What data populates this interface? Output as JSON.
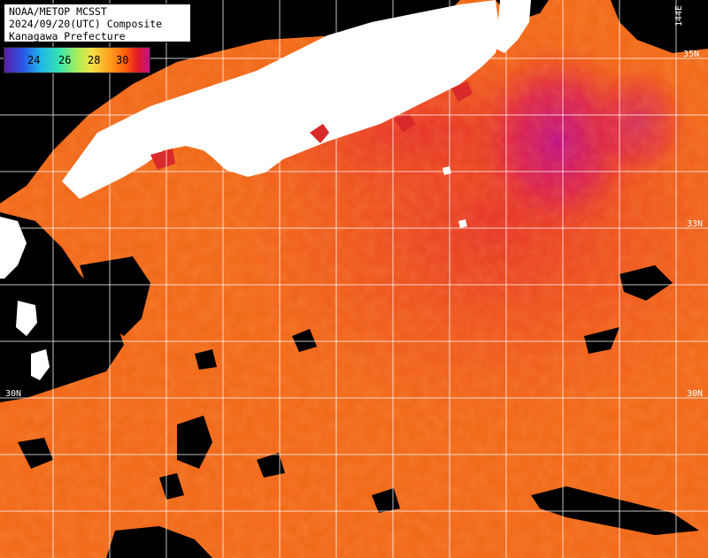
{
  "title": {
    "line1": "NOAA/METOP MCSST",
    "line2": "2024/09/20(UTC) Composite",
    "line3": "Kanagawa Prefecture"
  },
  "legend": {
    "ticks": [
      "24",
      "26",
      "28",
      "30"
    ],
    "colors": [
      "#5a1fa8",
      "#2a56e8",
      "#1fb7e8",
      "#37e3b0",
      "#a6ee5a",
      "#f3e046",
      "#ffa21e",
      "#ff5a0a",
      "#e01a2a",
      "#c0128a"
    ]
  },
  "grid_labels": {
    "lat_33": "33N",
    "lat_30_right": "30N",
    "lat_30_left": "30N",
    "lon_144": "144E",
    "lat_35": "35N"
  },
  "map_colors": {
    "land": "#ffffff",
    "cloud": "#000000",
    "sea_base": "#f26a1c",
    "sea_warm": "#e83a2a",
    "sea_hot": "#c0128a",
    "grid": "#ffffff"
  }
}
